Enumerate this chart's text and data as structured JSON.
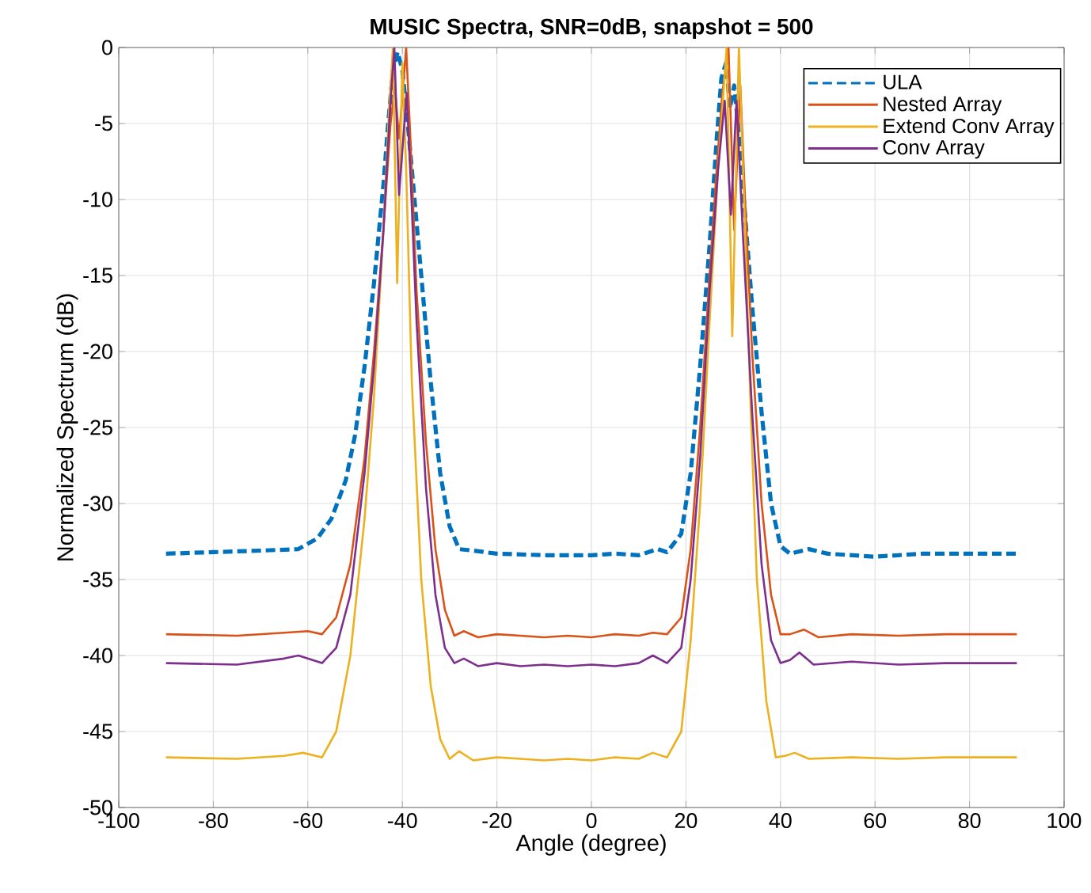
{
  "chart_data": {
    "type": "line",
    "title": "MUSIC Spectra, SNR=0dB, snapshot = 500",
    "xlabel": "Angle (degree)",
    "ylabel": "Normalized Spectrum (dB)",
    "xlim": [
      -100,
      100
    ],
    "ylim": [
      -50,
      0
    ],
    "xticks": [
      -100,
      -80,
      -60,
      -40,
      -20,
      0,
      20,
      40,
      60,
      80,
      100
    ],
    "yticks": [
      -50,
      -45,
      -40,
      -35,
      -30,
      -25,
      -20,
      -15,
      -10,
      -5,
      0
    ],
    "grid": true,
    "legend": "top right",
    "series": [
      {
        "name": "ULA",
        "color": "#0072bd",
        "line_style": "dashed",
        "x": [
          -90,
          -80,
          -70,
          -62,
          -58,
          -55,
          -52,
          -50,
          -48,
          -46,
          -44,
          -43,
          -42,
          -41,
          -40,
          -39,
          -38,
          -36,
          -34,
          -32,
          -30,
          -28,
          -25,
          -20,
          -10,
          0,
          5,
          10,
          14,
          16,
          19,
          21,
          23,
          25,
          26.5,
          27.5,
          28.5,
          29.3,
          30.2,
          31,
          32,
          34,
          36,
          38,
          40,
          42,
          46,
          50,
          60,
          70,
          80,
          90
        ],
        "values": [
          -33.3,
          -33.2,
          -33.1,
          -33.0,
          -32.3,
          -31,
          -28.5,
          -25.5,
          -21,
          -15.5,
          -9,
          -5,
          -1.5,
          -0.3,
          -1.5,
          -4.5,
          -8,
          -15,
          -22,
          -28,
          -31.5,
          -33,
          -33.1,
          -33.3,
          -33.4,
          -33.4,
          -33.3,
          -33.4,
          -33.0,
          -33.2,
          -32,
          -28,
          -21,
          -13,
          -6,
          -2,
          -1,
          -4,
          -2.5,
          -5,
          -9,
          -17,
          -24,
          -30,
          -32.8,
          -33.3,
          -33.0,
          -33.3,
          -33.5,
          -33.3,
          -33.3,
          -33.3
        ]
      },
      {
        "name": "Nested Array",
        "color": "#d95319",
        "line_style": "solid",
        "x": [
          -90,
          -75,
          -65,
          -60,
          -57,
          -54,
          -51,
          -48,
          -46,
          -44,
          -42.5,
          -41.6,
          -40.7,
          -39.2,
          -38.3,
          -37,
          -35,
          -33,
          -31,
          -29,
          -27,
          -24,
          -20,
          -15,
          -10,
          -5,
          0,
          5,
          10,
          13,
          16,
          19,
          21,
          23,
          25,
          26.5,
          27.7,
          29,
          30.2,
          31.5,
          32.5,
          34,
          36,
          38,
          40,
          42,
          45,
          48,
          55,
          65,
          75,
          90
        ],
        "values": [
          -38.6,
          -38.7,
          -38.5,
          -38.4,
          -38.6,
          -37.5,
          -34,
          -27,
          -20,
          -12,
          -5,
          -2.5,
          -6,
          0,
          -6,
          -16,
          -26,
          -33,
          -37,
          -38.7,
          -38.4,
          -38.8,
          -38.6,
          -38.7,
          -38.8,
          -38.7,
          -38.8,
          -38.6,
          -38.7,
          -38.5,
          -38.6,
          -37.5,
          -33,
          -25,
          -15,
          -8,
          -3,
          0,
          -12,
          -2.5,
          -10,
          -20,
          -30,
          -36,
          -38.6,
          -38.6,
          -38.3,
          -38.8,
          -38.6,
          -38.7,
          -38.6,
          -38.6
        ]
      },
      {
        "name": "Extend Conv Array",
        "color": "#edb120",
        "line_style": "solid",
        "x": [
          -90,
          -75,
          -65,
          -61,
          -57,
          -54,
          -51,
          -48,
          -46,
          -44,
          -42.8,
          -42,
          -41.1,
          -40,
          -39.2,
          -38,
          -36,
          -34,
          -32,
          -30,
          -28,
          -25,
          -20,
          -15,
          -10,
          -5,
          0,
          5,
          10,
          13,
          16,
          19,
          21,
          23,
          25,
          26.8,
          28.6,
          29.8,
          31.2,
          32.3,
          33.5,
          35,
          37,
          39,
          41,
          43,
          46,
          55,
          65,
          75,
          90
        ],
        "values": [
          -46.7,
          -46.8,
          -46.6,
          -46.4,
          -46.7,
          -45,
          -40,
          -31,
          -23,
          -12,
          -4,
          0,
          -15.5,
          -1,
          -8,
          -22,
          -35,
          -42,
          -45.5,
          -46.8,
          -46.3,
          -46.9,
          -46.7,
          -46.8,
          -46.9,
          -46.8,
          -46.9,
          -46.7,
          -46.8,
          -46.4,
          -46.7,
          -45,
          -39,
          -30,
          -18,
          -8,
          0,
          -19,
          0,
          -10,
          -22,
          -35,
          -43,
          -46.7,
          -46.6,
          -46.4,
          -46.8,
          -46.7,
          -46.8,
          -46.7,
          -46.7
        ]
      },
      {
        "name": "Conv Array",
        "color": "#7e2f8e",
        "line_style": "solid",
        "x": [
          -90,
          -75,
          -65,
          -62,
          -57,
          -54,
          -51,
          -48,
          -46,
          -44,
          -42.6,
          -41.7,
          -40.7,
          -39.1,
          -38.2,
          -37,
          -35,
          -33,
          -31,
          -29,
          -27,
          -24,
          -20,
          -15,
          -10,
          -5,
          0,
          5,
          10,
          13,
          16,
          19,
          21,
          23,
          25,
          26.8,
          28.2,
          29.5,
          30.7,
          32,
          34,
          36,
          38,
          40,
          42,
          44,
          47,
          55,
          65,
          75,
          90
        ],
        "values": [
          -40.5,
          -40.6,
          -40.2,
          -40.0,
          -40.5,
          -39.5,
          -36,
          -28,
          -21,
          -12,
          -4,
          0,
          -9.7,
          -3,
          -9,
          -18,
          -29,
          -36,
          -39.5,
          -40.5,
          -40.2,
          -40.7,
          -40.5,
          -40.7,
          -40.6,
          -40.7,
          -40.6,
          -40.7,
          -40.5,
          -40.0,
          -40.5,
          -39.5,
          -35,
          -27,
          -16,
          -8,
          -3.5,
          -11,
          -3.5,
          -12,
          -24,
          -34,
          -39,
          -40.5,
          -40.3,
          -39.8,
          -40.6,
          -40.4,
          -40.6,
          -40.5,
          -40.5
        ]
      }
    ]
  }
}
